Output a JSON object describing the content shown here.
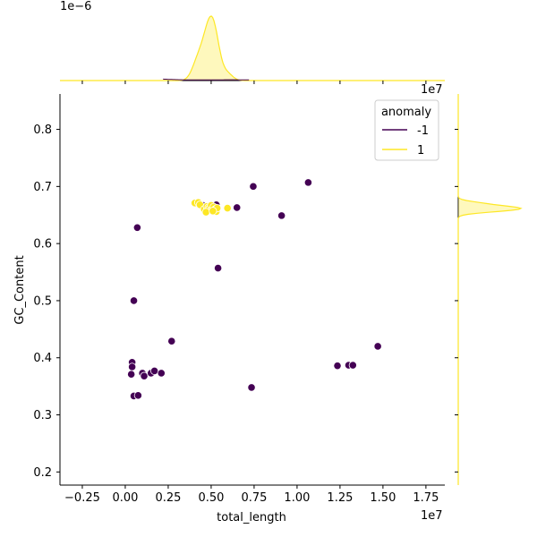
{
  "chart_data": {
    "type": "scatter",
    "xlabel": "total_length",
    "ylabel": "GC_Content",
    "x_offset_label": "1e7",
    "y_offset_label_top": "1e7",
    "marginal_offset_label": "1e−6",
    "xlim": [
      -0.38,
      1.86
    ],
    "ylim": [
      0.177,
      0.862
    ],
    "x_ticks": [
      -0.25,
      0.0,
      0.25,
      0.5,
      0.75,
      1.0,
      1.25,
      1.5,
      1.75
    ],
    "x_tick_labels": [
      "−0.25",
      "0.00",
      "0.25",
      "0.50",
      "0.75",
      "1.00",
      "1.25",
      "1.50",
      "1.75"
    ],
    "y_ticks": [
      0.2,
      0.3,
      0.4,
      0.5,
      0.6,
      0.7,
      0.8
    ],
    "y_tick_labels": [
      "0.2",
      "0.3",
      "0.4",
      "0.5",
      "0.6",
      "0.7",
      "0.8"
    ],
    "grid": false,
    "legend": {
      "title": "anomaly",
      "placement": "top-right",
      "entries": [
        {
          "label": "-1",
          "color": "#440154"
        },
        {
          "label": "1",
          "color": "#fde725"
        }
      ]
    },
    "series": [
      {
        "name": "-1",
        "color": "#440154",
        "points": [
          [
            0.07,
            0.628
          ],
          [
            0.05,
            0.5
          ],
          [
            0.745,
            0.7
          ],
          [
            1.065,
            0.707
          ],
          [
            0.91,
            0.649
          ],
          [
            0.65,
            0.663
          ],
          [
            0.53,
            0.668
          ],
          [
            0.45,
            0.667
          ],
          [
            0.54,
            0.557
          ],
          [
            0.27,
            0.429
          ],
          [
            1.47,
            0.42
          ],
          [
            1.235,
            0.386
          ],
          [
            1.3,
            0.387
          ],
          [
            1.325,
            0.387
          ],
          [
            0.735,
            0.348
          ],
          [
            0.04,
            0.392
          ],
          [
            0.04,
            0.384
          ],
          [
            0.035,
            0.371
          ],
          [
            0.1,
            0.373
          ],
          [
            0.11,
            0.368
          ],
          [
            0.15,
            0.373
          ],
          [
            0.17,
            0.377
          ],
          [
            0.21,
            0.373
          ],
          [
            0.05,
            0.333
          ],
          [
            0.075,
            0.334
          ]
        ]
      },
      {
        "name": "1",
        "color": "#fde725",
        "points": [
          [
            0.405,
            0.671
          ],
          [
            0.425,
            0.672
          ],
          [
            0.435,
            0.668
          ],
          [
            0.46,
            0.66
          ],
          [
            0.475,
            0.665
          ],
          [
            0.485,
            0.663
          ],
          [
            0.49,
            0.661
          ],
          [
            0.5,
            0.667
          ],
          [
            0.505,
            0.659
          ],
          [
            0.515,
            0.664
          ],
          [
            0.525,
            0.66
          ],
          [
            0.53,
            0.656
          ],
          [
            0.535,
            0.662
          ],
          [
            0.595,
            0.662
          ],
          [
            0.47,
            0.655
          ],
          [
            0.51,
            0.657
          ]
        ]
      }
    ],
    "marginals": {
      "top_density_color": "#fde725",
      "top_density_outline": "#440154",
      "right_density_color": "#fde725"
    }
  }
}
